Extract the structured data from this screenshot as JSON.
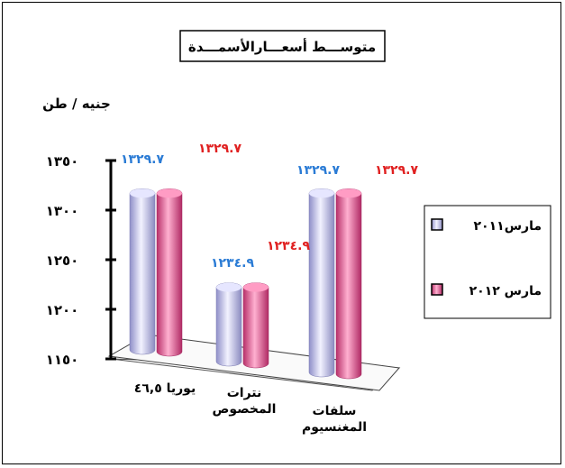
{
  "chart_data": {
    "type": "bar",
    "title": "متوســـط أسعـــارالأسمـــدة",
    "ylabel": "جنيه / طن",
    "xlabel": "",
    "categories": [
      "يوريا ٤٦,٥",
      "نترات المخصوص",
      "سلفات المغنسيوم"
    ],
    "category_lines": [
      [
        "يوريا ٤٦,٥"
      ],
      [
        "نترات",
        "المخصوص"
      ],
      [
        "سلفات",
        "المغنسيوم"
      ]
    ],
    "series": [
      {
        "name": "مارس٢٠١١",
        "values": [
          1329.7,
          1234.9,
          1329.7
        ],
        "labels": [
          "١٣٢٩.٧",
          "١٢٣٤.٩",
          "١٣٢٩.٧"
        ],
        "color": "#c8c8f0",
        "label_color": "#2a7bd5"
      },
      {
        "name": "مارس ٢٠١٢",
        "values": [
          1329.7,
          1234.9,
          1329.7
        ],
        "labels": [
          "١٣٢٩.٧",
          "١٢٣٤.٩",
          "١٣٢٩.٧"
        ],
        "color": "#f07aa8",
        "label_color": "#e02020"
      }
    ],
    "yticks": [
      1150,
      1200,
      1250,
      1300,
      1350
    ],
    "ytick_labels": [
      "١١٥٠",
      "١٢٠٠",
      "١٢٥٠",
      "١٣٠٠",
      "١٣٥٠"
    ],
    "ylim": [
      1150,
      1350
    ],
    "grid": false,
    "legend_position": "right"
  }
}
